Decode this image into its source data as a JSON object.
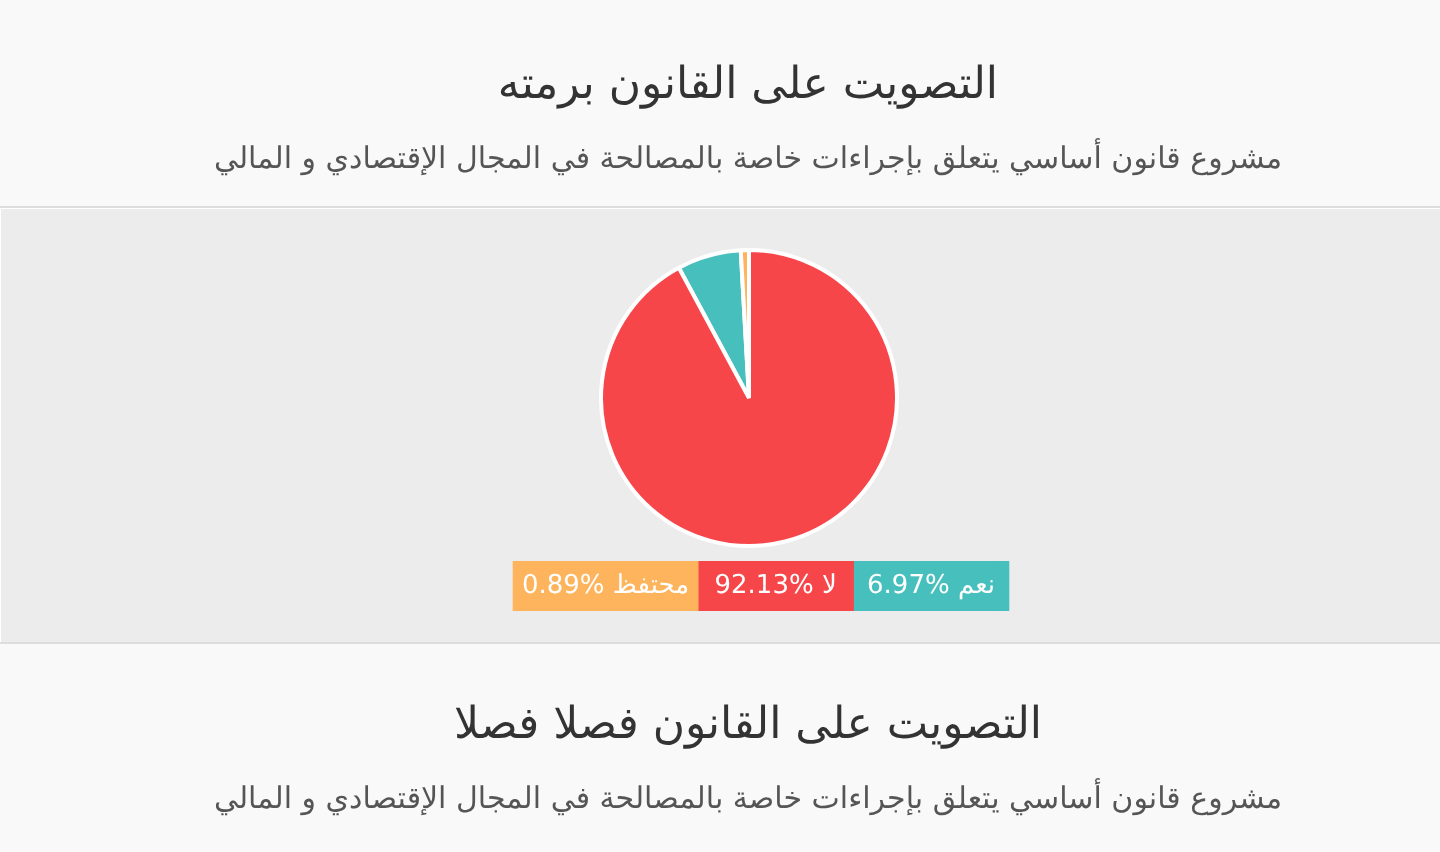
{
  "chart_data": {
    "type": "pie",
    "title": "التصويت على القانون برمته",
    "subtitle": "مشروع قانون أساسي يتعلق بإجراءات خاصة بالمصالحة في المجال الإقتصادي و المالي",
    "categories": [
      "نعم",
      "لا",
      "محتفظ"
    ],
    "values": [
      6.97,
      92.13,
      0.89
    ],
    "colors": [
      "#46bfbd",
      "#f7464a",
      "#fdb45c"
    ],
    "value_labels": [
      "6.97%",
      "92.13%",
      "0.89%"
    ],
    "legend": "bottom",
    "annotations": [
      "التصويت على القانون فصلا فصلا",
      "مشروع قانون أساسي يتعلق بإجراءات خاصة بالمصالحة في المجال الإقتصادي و المالي"
    ]
  }
}
